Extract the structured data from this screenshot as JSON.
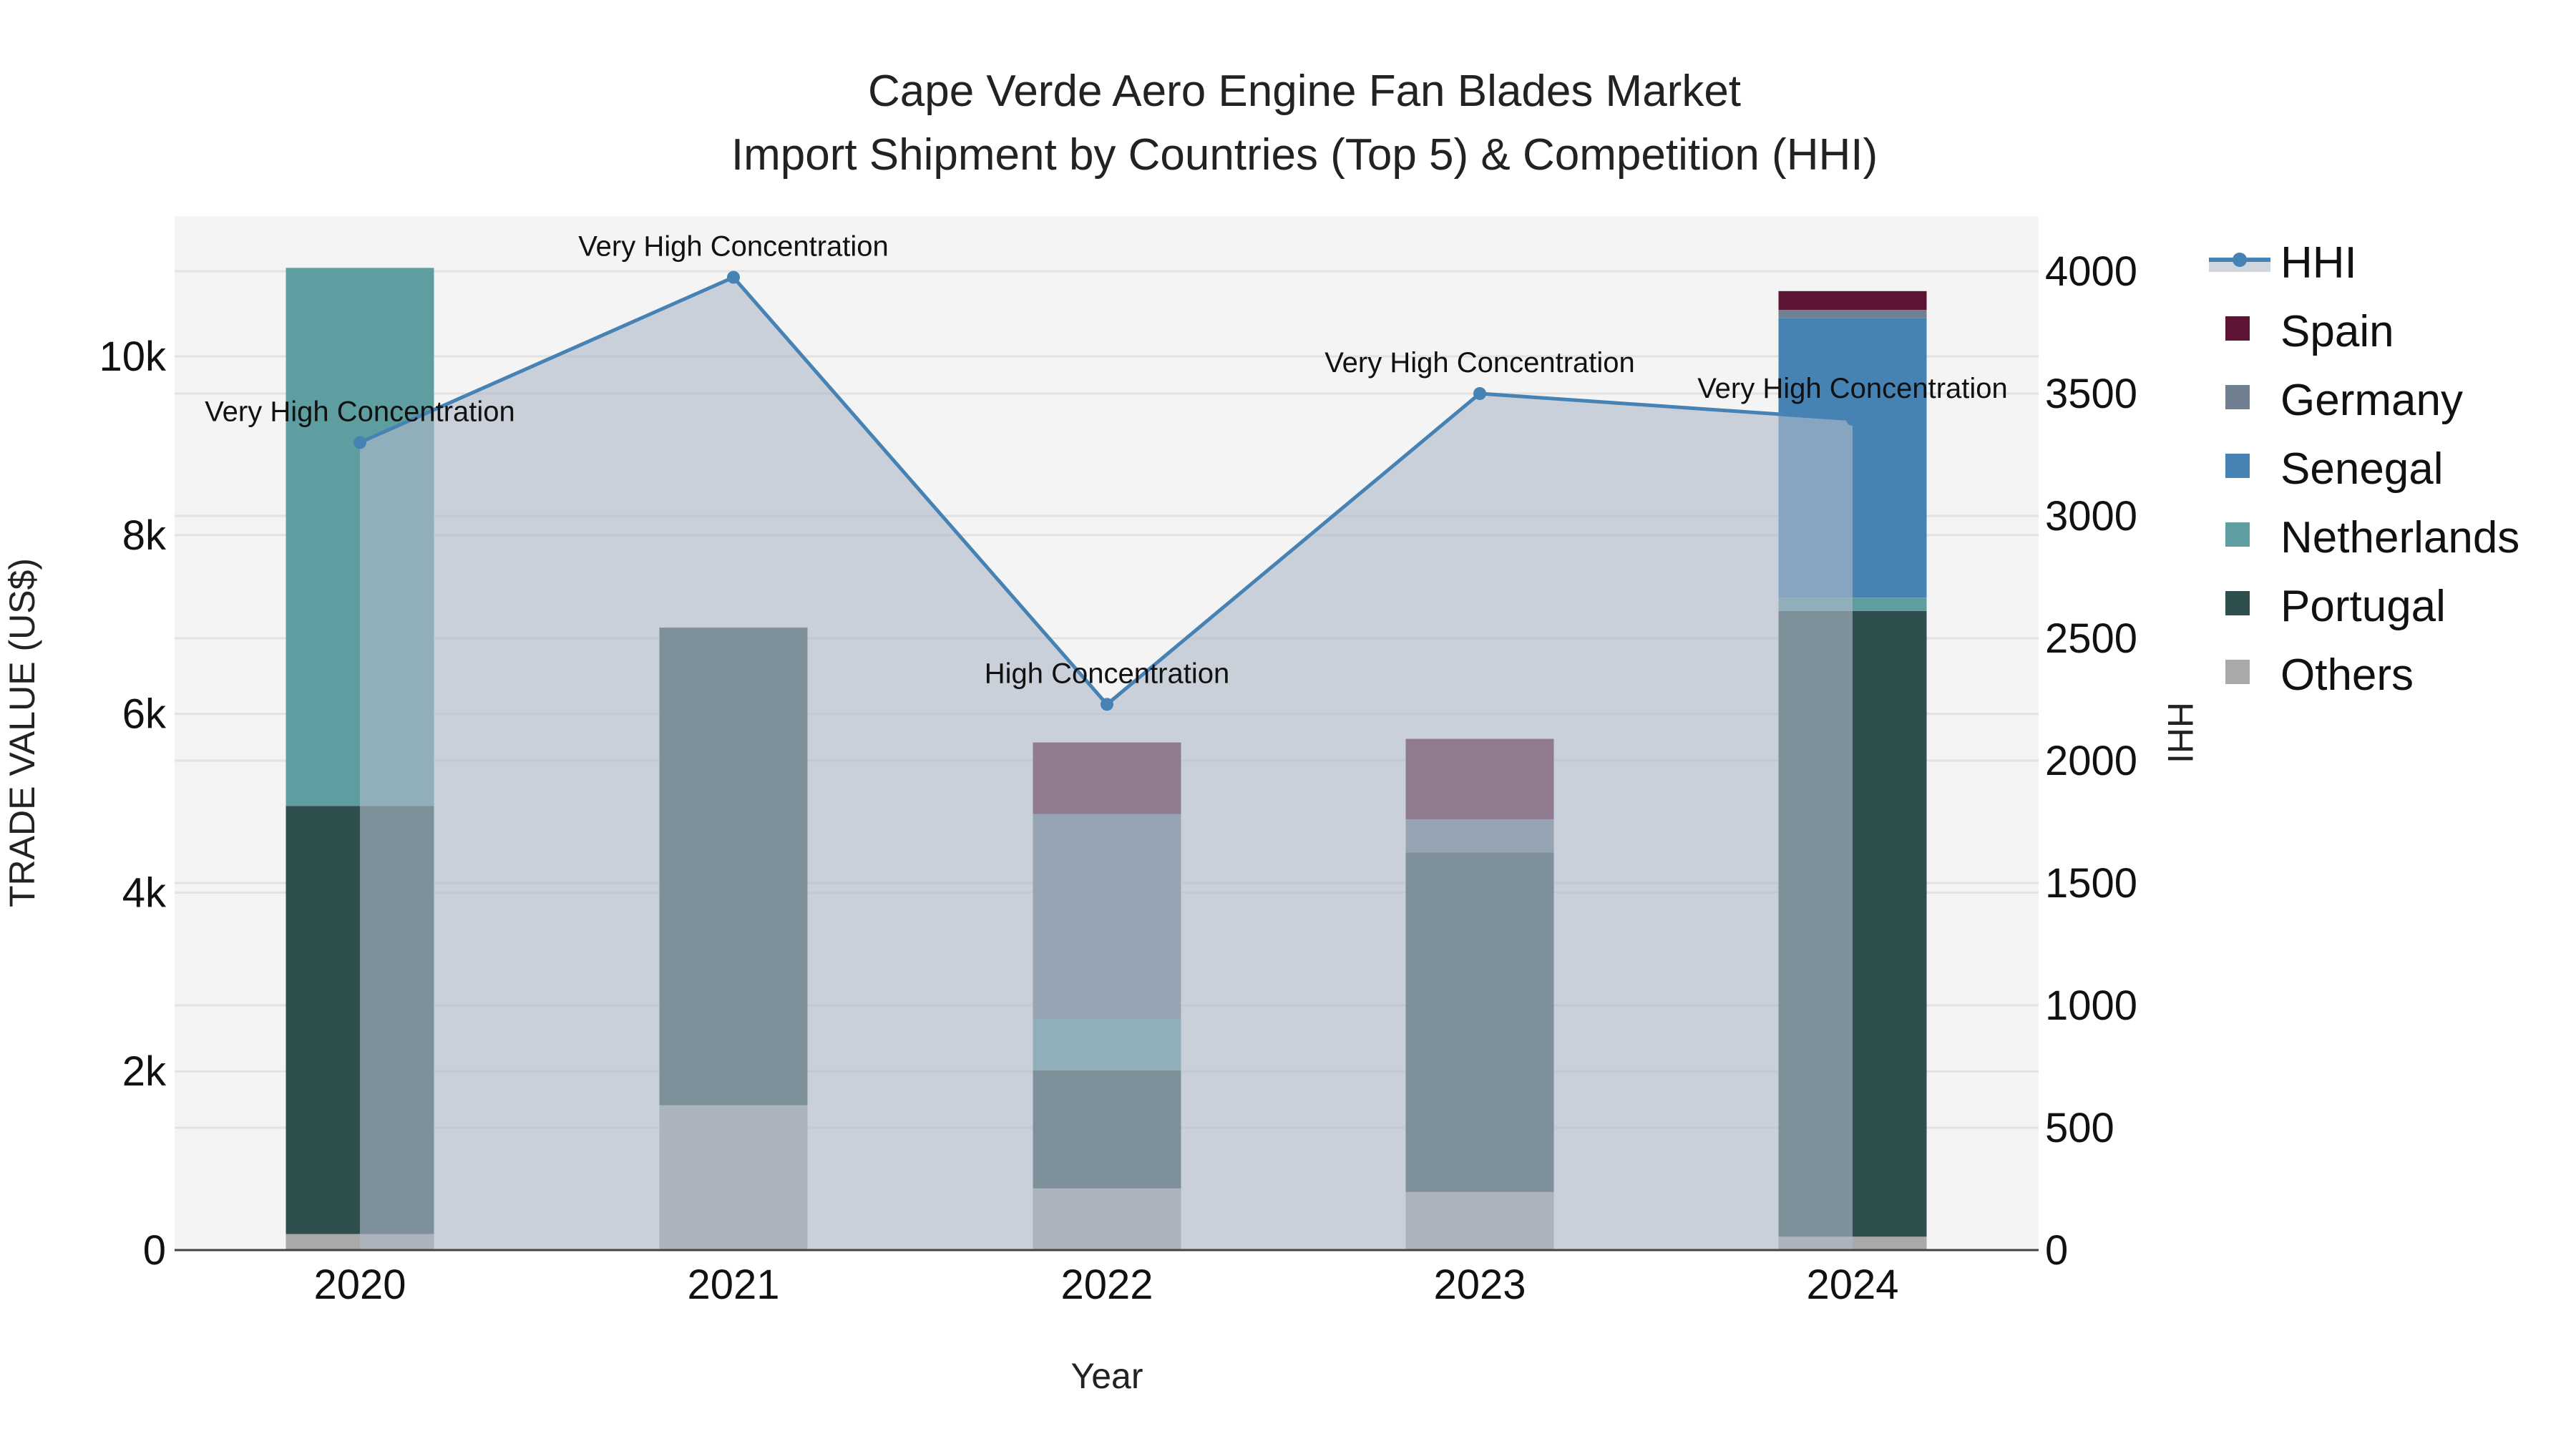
{
  "title": {
    "line1": "Cape Verde Aero Engine Fan Blades Market",
    "line2": "Import Shipment by Countries (Top 5) & Competition (HHI)"
  },
  "axes": {
    "x_title": "Year",
    "y_left_title": "TRADE VALUE (US$)",
    "y_right_title": "HHI",
    "y_left_ticks": [
      "0",
      "2k",
      "4k",
      "6k",
      "8k",
      "10k"
    ],
    "y_right_ticks": [
      "0",
      "500",
      "1000",
      "1500",
      "2000",
      "2500",
      "3000",
      "3500",
      "4000"
    ],
    "x_ticks": [
      "2020",
      "2021",
      "2022",
      "2023",
      "2024"
    ]
  },
  "legend": {
    "items": [
      {
        "label": "HHI",
        "color": "#4682b4",
        "type": "line"
      },
      {
        "label": "Spain",
        "color": "#5e1434",
        "type": "bar"
      },
      {
        "label": "Germany",
        "color": "#708090",
        "type": "bar"
      },
      {
        "label": "Senegal",
        "color": "#4682b4",
        "type": "bar"
      },
      {
        "label": "Netherlands",
        "color": "#5f9ea0",
        "type": "bar"
      },
      {
        "label": "Portugal",
        "color": "#2f4f4f",
        "type": "bar"
      },
      {
        "label": "Others",
        "color": "#a9a9a9",
        "type": "bar"
      }
    ]
  },
  "annotations": [
    {
      "year": "2020",
      "text": "Very High Concentration"
    },
    {
      "year": "2021",
      "text": "Very High Concentration"
    },
    {
      "year": "2022",
      "text": "High Concentration"
    },
    {
      "year": "2023",
      "text": "Very High Concentration"
    },
    {
      "year": "2024",
      "text": "Very High Concentration"
    }
  ],
  "chart_data": {
    "type": "bar",
    "title": "Cape Verde Aero Engine Fan Blades Market — Import Shipment by Countries (Top 5) & Competition (HHI)",
    "xlabel": "Year",
    "ylabel": "TRADE VALUE (US$)",
    "y2label": "HHI",
    "categories": [
      "2020",
      "2021",
      "2022",
      "2023",
      "2024"
    ],
    "stacked": true,
    "ylim": [
      0,
      11500
    ],
    "y2lim": [
      0,
      4200
    ],
    "series": [
      {
        "name": "Others",
        "color": "#a9a9a9",
        "values": [
          180,
          1620,
          690,
          650,
          150
        ]
      },
      {
        "name": "Portugal",
        "color": "#2f4f4f",
        "values": [
          4790,
          5345,
          1320,
          3800,
          7000
        ]
      },
      {
        "name": "Netherlands",
        "color": "#5f9ea0",
        "values": [
          6020,
          0,
          580,
          0,
          150
        ]
      },
      {
        "name": "Senegal",
        "color": "#4682b4",
        "values": [
          0,
          0,
          0,
          0,
          3130
        ]
      },
      {
        "name": "Germany",
        "color": "#708090",
        "values": [
          0,
          0,
          2290,
          370,
          90
        ]
      },
      {
        "name": "Spain",
        "color": "#5e1434",
        "values": [
          0,
          0,
          800,
          900,
          210
        ]
      }
    ],
    "line_series": {
      "name": "HHI",
      "axis": "right",
      "color": "#4682b4",
      "fill": "area",
      "values": [
        3300,
        3975,
        2230,
        3500,
        3395
      ],
      "labels": [
        "Very High Concentration",
        "Very High Concentration",
        "High Concentration",
        "Very High Concentration",
        "Very High Concentration"
      ]
    },
    "grid": true,
    "legend_position": "right"
  }
}
